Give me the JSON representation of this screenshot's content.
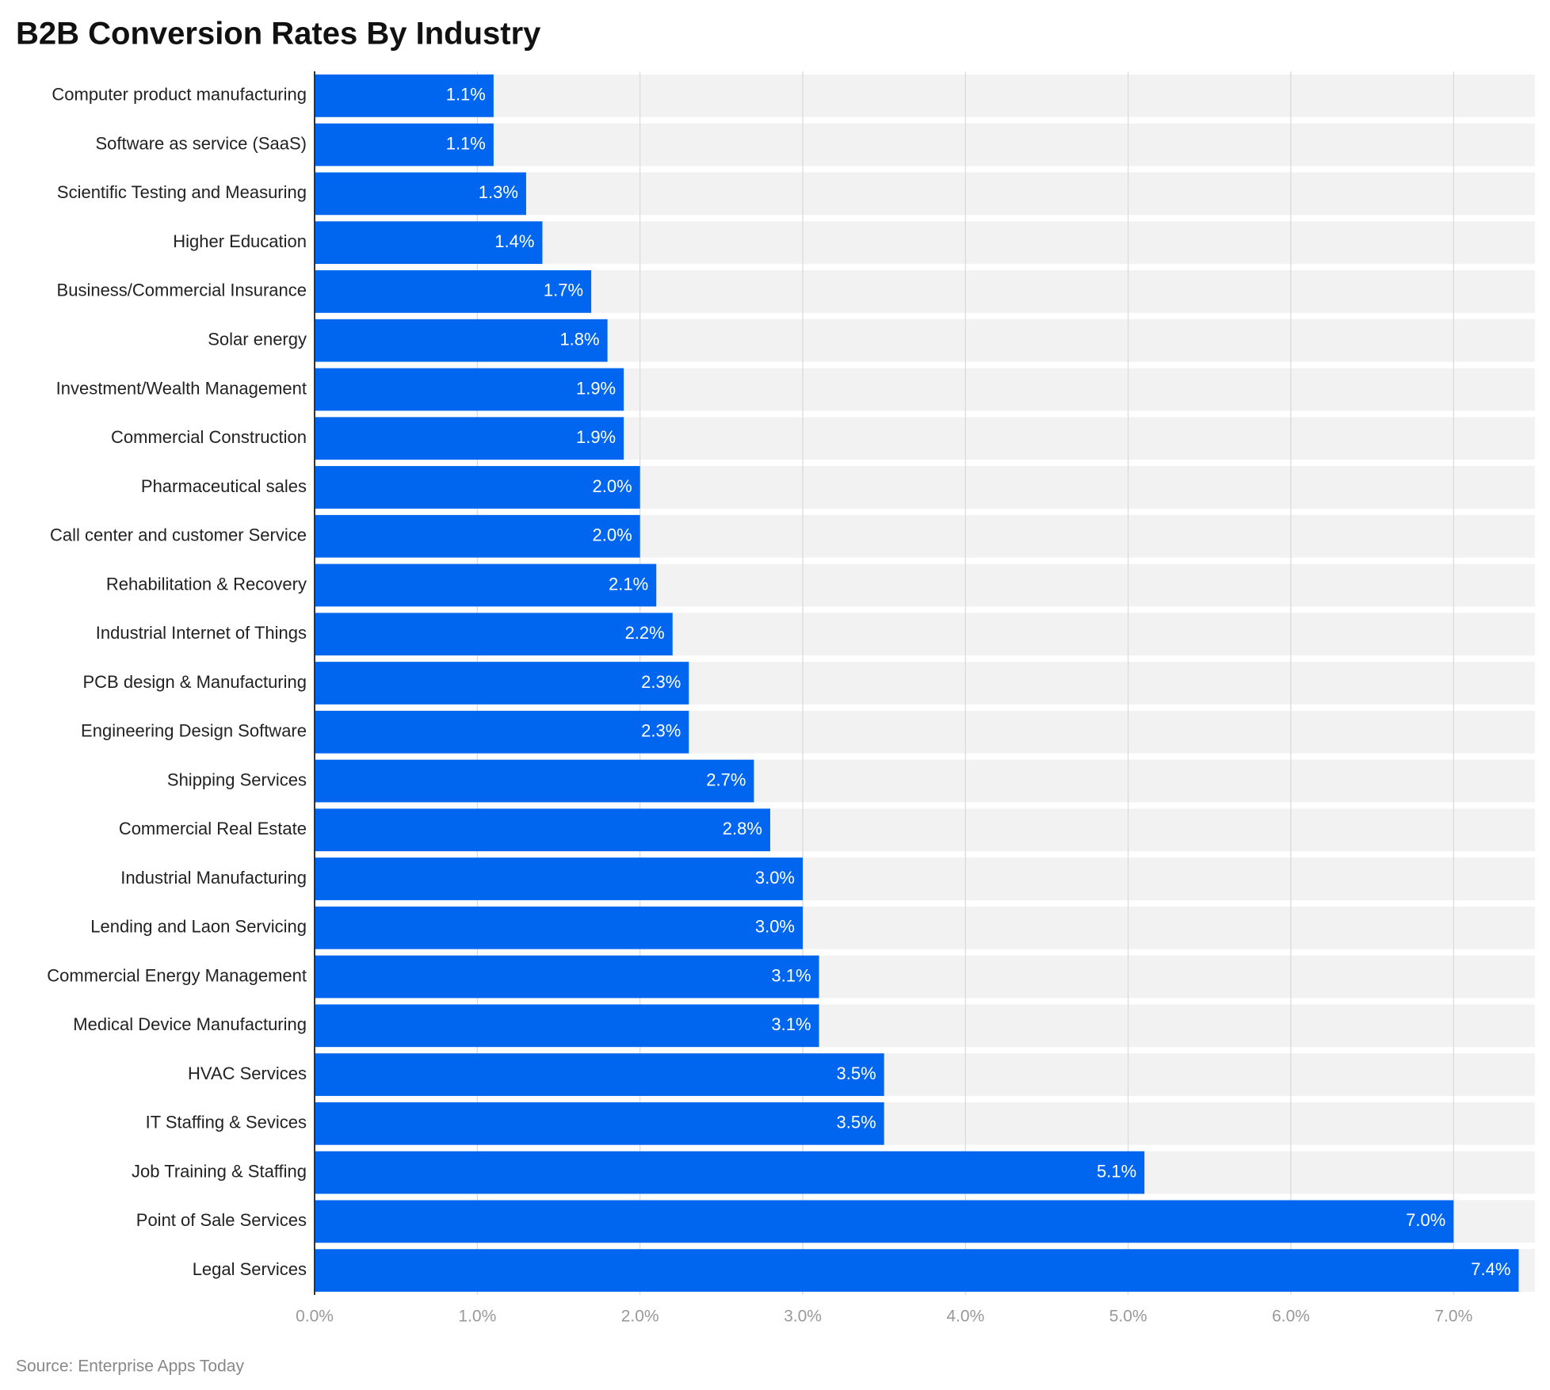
{
  "chart_data": {
    "type": "bar",
    "orientation": "horizontal",
    "title": "B2B Conversion Rates By Industry",
    "source": "Source: Enterprise Apps Today",
    "categories": [
      "Computer product manufacturing",
      "Software as service (SaaS)",
      "Scientific Testing and Measuring",
      "Higher Education",
      "Business/Commercial Insurance",
      "Solar energy",
      "Investment/Wealth Management",
      "Commercial Construction",
      "Pharmaceutical sales",
      "Call center and customer Service",
      "Rehabilitation & Recovery",
      "Industrial Internet of Things",
      "PCB design & Manufacturing",
      "Engineering Design Software",
      "Shipping Services",
      "Commercial Real Estate",
      "Industrial Manufacturing",
      "Lending and Laon Servicing",
      "Commercial Energy Management",
      "Medical Device Manufacturing",
      "HVAC Services",
      "IT Staffing & Sevices",
      "Job Training & Staffing",
      "Point of Sale Services",
      "Legal Services"
    ],
    "values": [
      1.1,
      1.1,
      1.3,
      1.4,
      1.7,
      1.8,
      1.9,
      1.9,
      2.0,
      2.0,
      2.1,
      2.2,
      2.3,
      2.3,
      2.7,
      2.8,
      3.0,
      3.0,
      3.1,
      3.1,
      3.5,
      3.5,
      5.1,
      7.0,
      7.4
    ],
    "value_labels": [
      "1.1%",
      "1.1%",
      "1.3%",
      "1.4%",
      "1.7%",
      "1.8%",
      "1.9%",
      "1.9%",
      "2.0%",
      "2.0%",
      "2.1%",
      "2.2%",
      "2.3%",
      "2.3%",
      "2.7%",
      "2.8%",
      "3.0%",
      "3.0%",
      "3.1%",
      "3.1%",
      "3.5%",
      "3.5%",
      "5.1%",
      "7.0%",
      "7.4%"
    ],
    "color": "#0066f0",
    "xlim": [
      0,
      7.5
    ],
    "xticks": [
      {
        "value": 0,
        "label": "0.0%"
      },
      {
        "value": 1,
        "label": "1.0%"
      },
      {
        "value": 2,
        "label": "2.0%"
      },
      {
        "value": 3,
        "label": "3.0%"
      },
      {
        "value": 4,
        "label": "4.0%"
      },
      {
        "value": 5,
        "label": "5.0%"
      },
      {
        "value": 6,
        "label": "6.0%"
      },
      {
        "value": 7,
        "label": "7.0%"
      }
    ],
    "grid": true
  }
}
